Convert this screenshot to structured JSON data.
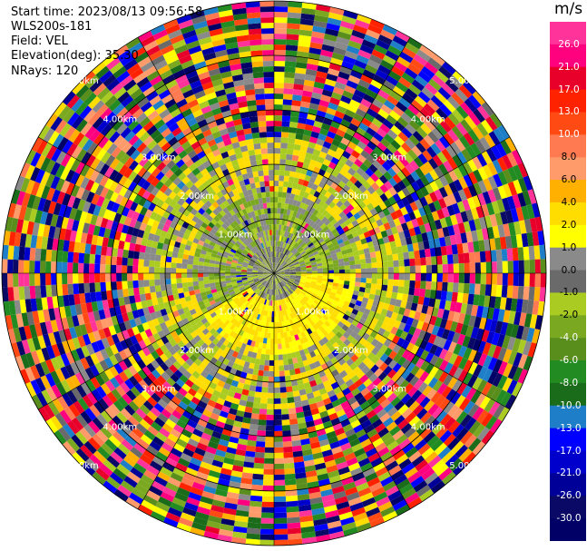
{
  "header": {
    "start_time": "Start time: 2023/08/13 09:56:58",
    "instrument": "WLS200s-181",
    "field": "Field: VEL",
    "elevation": "Elevation(deg): 35.30",
    "nrays": "NRays: 120"
  },
  "chart_data": {
    "type": "heatmap",
    "projection": "polar-ppi",
    "title": "",
    "nrays": 120,
    "range_rings_km": [
      1.0,
      2.0,
      3.0,
      4.0,
      5.0
    ],
    "range_ring_labels": [
      "1.00km",
      "2.00km",
      "3.00km",
      "4.00km",
      "5.00km"
    ],
    "max_range_km": 5.0,
    "colorbar": {
      "unit": "m/s",
      "vmin": -30.0,
      "vmax": 30.0,
      "tick_labels": [
        "26.0",
        "21.0",
        "17.0",
        "13.0",
        "10.0",
        "8.0",
        "6.0",
        "4.0",
        "2.0",
        "1.0",
        "0.0",
        "-1.0",
        "-2.0",
        "-4.0",
        "-6.0",
        "-8.0",
        "-10.0",
        "-13.0",
        "-17.0",
        "-21.0",
        "-26.0",
        "-30.0"
      ],
      "colors": [
        "#ff3399",
        "#ff007f",
        "#e8002a",
        "#ff2200",
        "#ff4a14",
        "#ff7a50",
        "#ff9a6a",
        "#ffb000",
        "#ffdd00",
        "#ffff00",
        "#8a8a8a",
        "#6a6a6a",
        "#aacc22",
        "#7aa820",
        "#5a8e1c",
        "#228b22",
        "#1a6b1a",
        "#1e7fc8",
        "#0000ff",
        "#0000cc",
        "#000099",
        "#0a0a66",
        "#000066"
      ]
    },
    "regions": [
      {
        "range_km": [
          0.0,
          0.5
        ],
        "velocity": "near-zero / mixed",
        "colors": [
          "#8a8a8a",
          "#6a6a6a",
          "#aacc22"
        ]
      },
      {
        "range_km": [
          0.5,
          1.5
        ],
        "az_deg": [
          90,
          240
        ],
        "velocity_ms": [
          2.0,
          4.0
        ],
        "colors": [
          "#ffff00",
          "#ffdd00"
        ]
      },
      {
        "range_km": [
          0.5,
          1.5
        ],
        "az_deg": [
          240,
          450
        ],
        "velocity_ms": [
          -4.0,
          1.0
        ],
        "colors": [
          "#aacc22",
          "#8a8a8a",
          "#7aa820"
        ]
      },
      {
        "range_km": [
          1.5,
          2.5
        ],
        "velocity_ms": [
          -4.0,
          4.0
        ],
        "colors": [
          "#aacc22",
          "#8a8a8a",
          "#ffdd00"
        ]
      },
      {
        "range_km": [
          2.5,
          5.0
        ],
        "velocity": "noise / all colors",
        "colors": "all"
      }
    ]
  }
}
